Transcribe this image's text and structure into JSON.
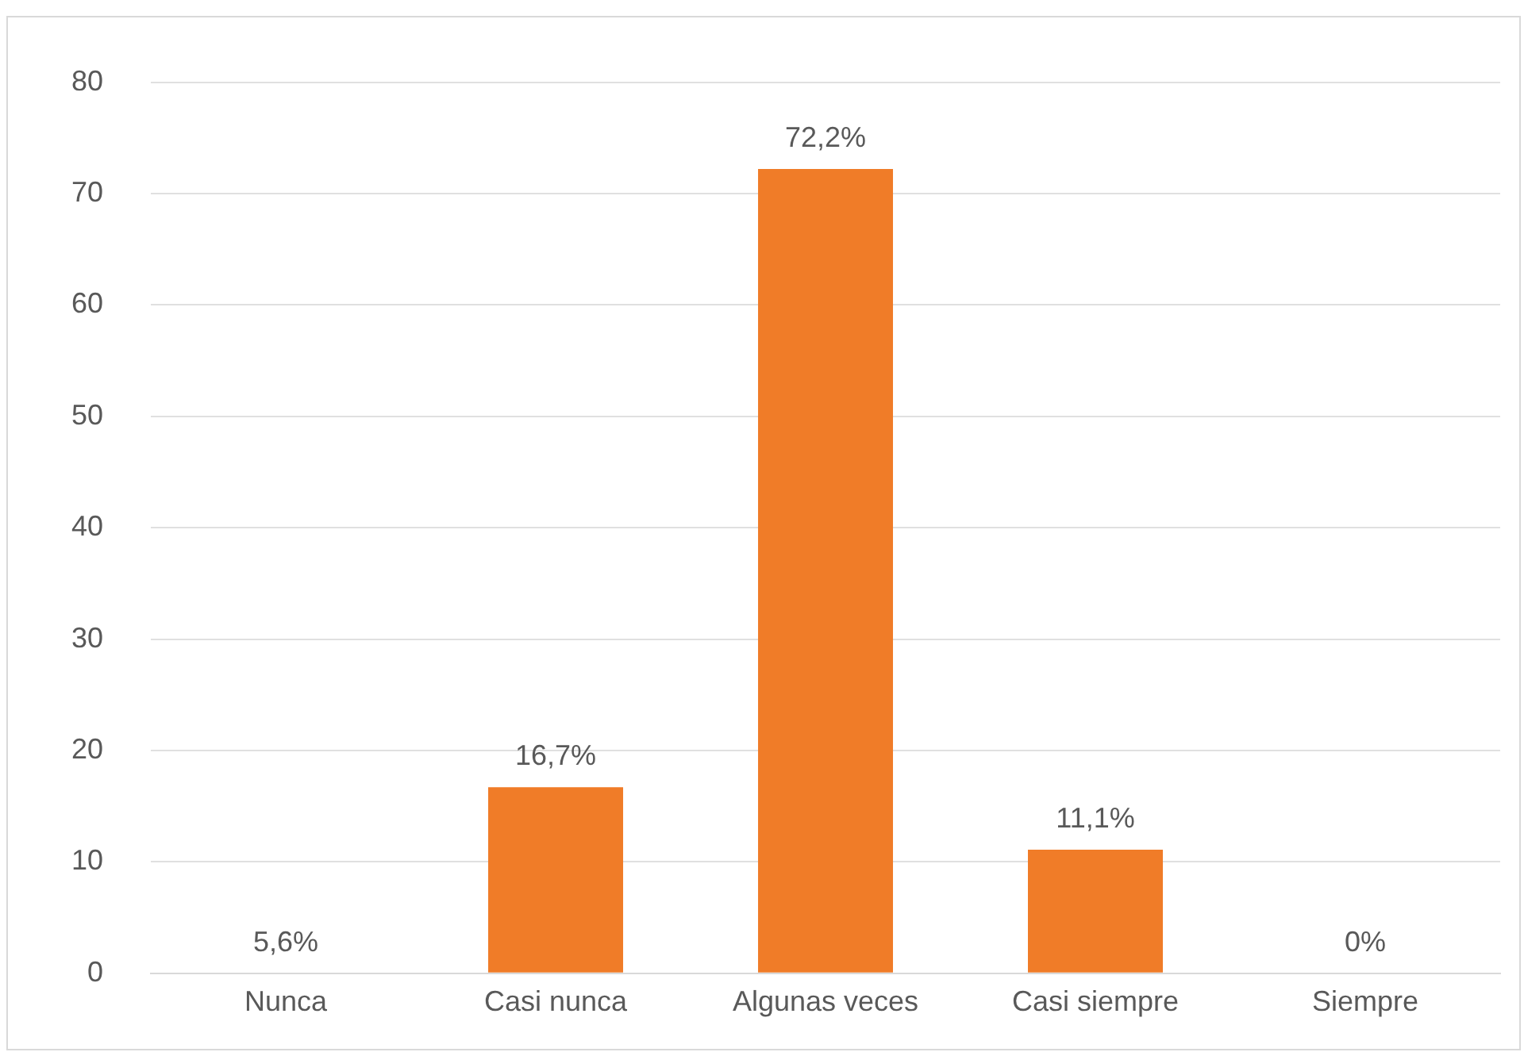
{
  "chart_data": {
    "type": "bar",
    "categories": [
      "Nunca",
      "Casi nunca",
      "Algunas veces",
      "Casi siempre",
      "Siempre"
    ],
    "values": [
      0,
      16.7,
      72.2,
      11.1,
      0
    ],
    "value_labels": [
      null,
      "16,7%",
      "72,2%",
      "11,1%",
      "0%"
    ],
    "annotations": [
      {
        "text": "5,6%",
        "x": "Nunca",
        "y": 0
      }
    ],
    "color": "#f07c28",
    "ylim": [
      0,
      80
    ],
    "yticks": [
      0,
      10,
      20,
      30,
      40,
      50,
      60,
      70,
      80
    ],
    "grid": "y",
    "legend": false
  }
}
